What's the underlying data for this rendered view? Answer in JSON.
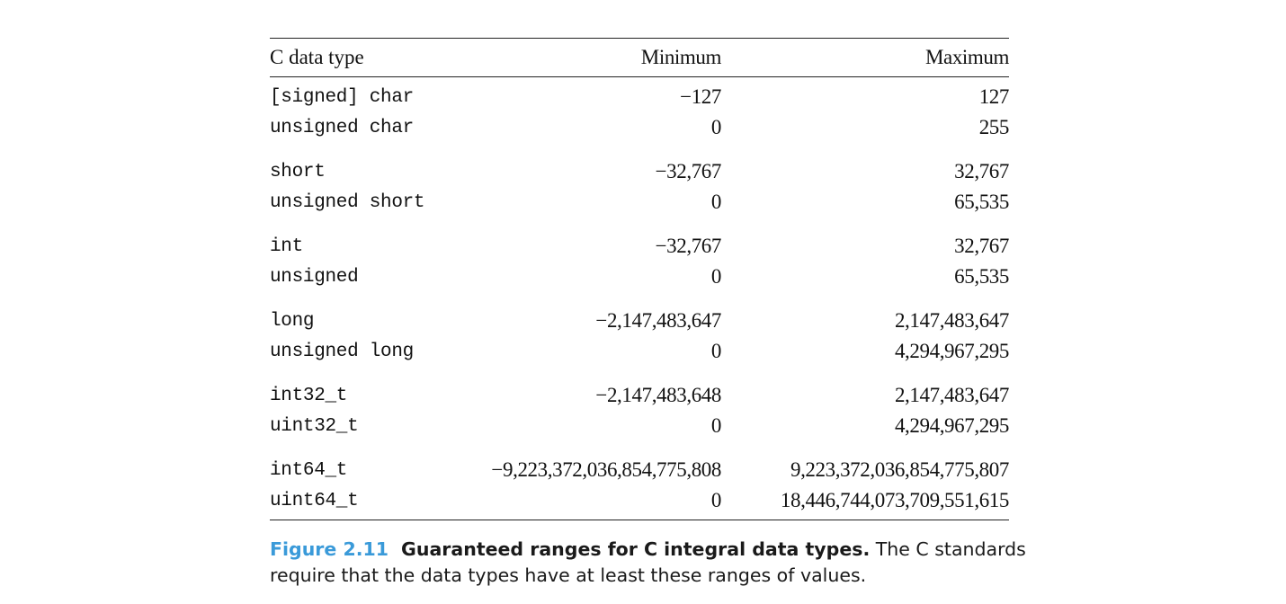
{
  "table": {
    "headers": {
      "type": "C data type",
      "min": "Minimum",
      "max": "Maximum"
    },
    "groups": [
      {
        "rows": [
          {
            "type": "[signed] char",
            "min": "−127",
            "max": "127"
          },
          {
            "type": "unsigned char",
            "min": "0",
            "max": "255"
          }
        ]
      },
      {
        "rows": [
          {
            "type": "short",
            "min": "−32,767",
            "max": "32,767"
          },
          {
            "type": "unsigned short",
            "min": "0",
            "max": "65,535"
          }
        ]
      },
      {
        "rows": [
          {
            "type": "int",
            "min": "−32,767",
            "max": "32,767"
          },
          {
            "type": "unsigned",
            "min": "0",
            "max": "65,535"
          }
        ]
      },
      {
        "rows": [
          {
            "type": "long",
            "min": "−2,147,483,647",
            "max": "2,147,483,647"
          },
          {
            "type": "unsigned long",
            "min": "0",
            "max": "4,294,967,295"
          }
        ]
      },
      {
        "rows": [
          {
            "type": "int32_t",
            "min": "−2,147,483,648",
            "max": "2,147,483,647"
          },
          {
            "type": "uint32_t",
            "min": "0",
            "max": "4,294,967,295"
          }
        ]
      },
      {
        "rows": [
          {
            "type": "int64_t",
            "min": "−9,223,372,036,854,775,808",
            "max": "9,223,372,036,854,775,807"
          },
          {
            "type": "uint64_t",
            "min": "0",
            "max": "18,446,744,073,709,551,615"
          }
        ]
      }
    ]
  },
  "caption": {
    "figure_number": "Figure 2.11",
    "title": "Guaranteed ranges for C integral data types.",
    "text": " The C standards require that the data types have at least these ranges of values."
  },
  "colors": {
    "figure_number": "#3a9ad9",
    "text": "#111111"
  }
}
